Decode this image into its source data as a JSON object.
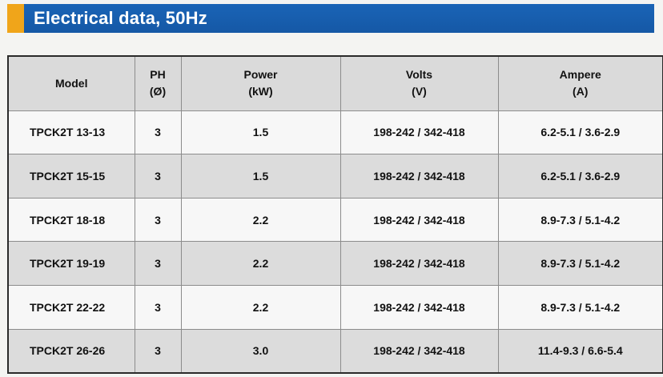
{
  "header": {
    "title": "Electrical data, 50Hz",
    "accent_color": "#f0a51a",
    "bar_color": "#1558a6"
  },
  "table": {
    "columns": [
      {
        "line1": "Model",
        "line2": ""
      },
      {
        "line1": "PH",
        "line2": "(Ø)"
      },
      {
        "line1": "Power",
        "line2": "(kW)"
      },
      {
        "line1": "Volts",
        "line2": "(V)"
      },
      {
        "line1": "Ampere",
        "line2": "(A)"
      }
    ],
    "rows": [
      {
        "model": "TPCK2T 13-13",
        "ph": "3",
        "power": "1.5",
        "volts": "198-242 / 342-418",
        "ampere": "6.2-5.1 / 3.6-2.9"
      },
      {
        "model": "TPCK2T 15-15",
        "ph": "3",
        "power": "1.5",
        "volts": "198-242 / 342-418",
        "ampere": "6.2-5.1 / 3.6-2.9"
      },
      {
        "model": "TPCK2T 18-18",
        "ph": "3",
        "power": "2.2",
        "volts": "198-242 / 342-418",
        "ampere": "8.9-7.3 / 5.1-4.2"
      },
      {
        "model": "TPCK2T 19-19",
        "ph": "3",
        "power": "2.2",
        "volts": "198-242 / 342-418",
        "ampere": "8.9-7.3 / 5.1-4.2"
      },
      {
        "model": "TPCK2T 22-22",
        "ph": "3",
        "power": "2.2",
        "volts": "198-242 / 342-418",
        "ampere": "8.9-7.3 / 5.1-4.2"
      },
      {
        "model": "TPCK2T 26-26",
        "ph": "3",
        "power": "3.0",
        "volts": "198-242 / 342-418",
        "ampere": "11.4-9.3 / 6.6-5.4"
      }
    ]
  }
}
